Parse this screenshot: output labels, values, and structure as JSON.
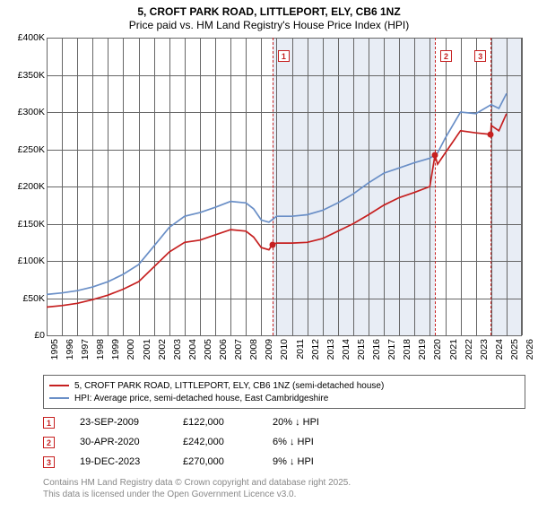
{
  "title": {
    "line1": "5, CROFT PARK ROAD, LITTLEPORT, ELY, CB6 1NZ",
    "line2": "Price paid vs. HM Land Registry's House Price Index (HPI)"
  },
  "chart": {
    "type": "line",
    "background_color": "#ffffff",
    "shade_color": "#e8edf5",
    "grid_color": "#666666",
    "xmin": 1995,
    "xmax": 2026,
    "ymin": 0,
    "ymax": 400000,
    "yticks": [
      0,
      50000,
      100000,
      150000,
      200000,
      250000,
      300000,
      350000,
      400000
    ],
    "ytick_labels": [
      "£0",
      "£50K",
      "£100K",
      "£150K",
      "£200K",
      "£250K",
      "£300K",
      "£350K",
      "£400K"
    ],
    "xticks": [
      1995,
      1996,
      1997,
      1998,
      1999,
      2000,
      2001,
      2002,
      2003,
      2004,
      2005,
      2006,
      2007,
      2008,
      2009,
      2010,
      2011,
      2012,
      2013,
      2014,
      2015,
      2016,
      2017,
      2018,
      2019,
      2020,
      2021,
      2022,
      2023,
      2024,
      2025,
      2026
    ],
    "shaded_ranges": [
      [
        2009.73,
        2020.33
      ],
      [
        2023.97,
        2026
      ]
    ],
    "series_hpi": {
      "color": "#6a8fc7",
      "width": 1.7,
      "x": [
        1995,
        1996,
        1997,
        1998,
        1999,
        2000,
        2001,
        2002,
        2003,
        2004,
        2005,
        2006,
        2007,
        2008,
        2008.5,
        2009,
        2009.5,
        2010,
        2011,
        2012,
        2013,
        2014,
        2015,
        2016,
        2017,
        2018,
        2019,
        2020,
        2020.5,
        2021,
        2022,
        2023,
        2024,
        2024.5,
        2025
      ],
      "y": [
        55000,
        57000,
        60000,
        65000,
        72000,
        82000,
        95000,
        120000,
        145000,
        160000,
        165000,
        172000,
        180000,
        178000,
        170000,
        155000,
        152000,
        160000,
        160000,
        162000,
        168000,
        178000,
        190000,
        205000,
        218000,
        225000,
        232000,
        238000,
        245000,
        265000,
        300000,
        298000,
        310000,
        305000,
        325000
      ]
    },
    "series_price": {
      "color": "#c62020",
      "width": 1.7,
      "x": [
        1995,
        1996,
        1997,
        1998,
        1999,
        2000,
        2001,
        2002,
        2003,
        2004,
        2005,
        2006,
        2007,
        2008,
        2008.5,
        2009,
        2009.5,
        2009.73,
        2010,
        2011,
        2012,
        2013,
        2014,
        2015,
        2016,
        2017,
        2018,
        2019,
        2020,
        2020.33,
        2020.5,
        2021,
        2022,
        2023,
        2023.97,
        2024,
        2024.5,
        2025
      ],
      "y": [
        38000,
        40000,
        43000,
        48000,
        54000,
        62000,
        72000,
        92000,
        112000,
        125000,
        128000,
        135000,
        142000,
        140000,
        132000,
        118000,
        115000,
        122000,
        124000,
        124000,
        125000,
        130000,
        140000,
        150000,
        162000,
        175000,
        185000,
        192000,
        200000,
        242000,
        230000,
        245000,
        275000,
        272000,
        270000,
        282000,
        275000,
        298000
      ]
    },
    "markers": [
      {
        "n": "1",
        "x": 2009.73
      },
      {
        "n": "2",
        "x": 2020.33
      },
      {
        "n": "3",
        "x": 2023.97
      }
    ],
    "sale_points": [
      {
        "x": 2009.73,
        "y": 122000
      },
      {
        "x": 2020.33,
        "y": 242000
      },
      {
        "x": 2023.97,
        "y": 270000
      }
    ]
  },
  "legend": {
    "item1": "5, CROFT PARK ROAD, LITTLEPORT, ELY, CB6 1NZ (semi-detached house)",
    "item2": "HPI: Average price, semi-detached house, East Cambridgeshire",
    "color1": "#c62020",
    "color2": "#6a8fc7"
  },
  "events": [
    {
      "n": "1",
      "date": "23-SEP-2009",
      "price": "£122,000",
      "delta": "20% ↓ HPI"
    },
    {
      "n": "2",
      "date": "30-APR-2020",
      "price": "£242,000",
      "delta": "6% ↓ HPI"
    },
    {
      "n": "3",
      "date": "19-DEC-2023",
      "price": "£270,000",
      "delta": "9% ↓ HPI"
    }
  ],
  "footer": {
    "line1": "Contains HM Land Registry data © Crown copyright and database right 2025.",
    "line2": "This data is licensed under the Open Government Licence v3.0."
  }
}
